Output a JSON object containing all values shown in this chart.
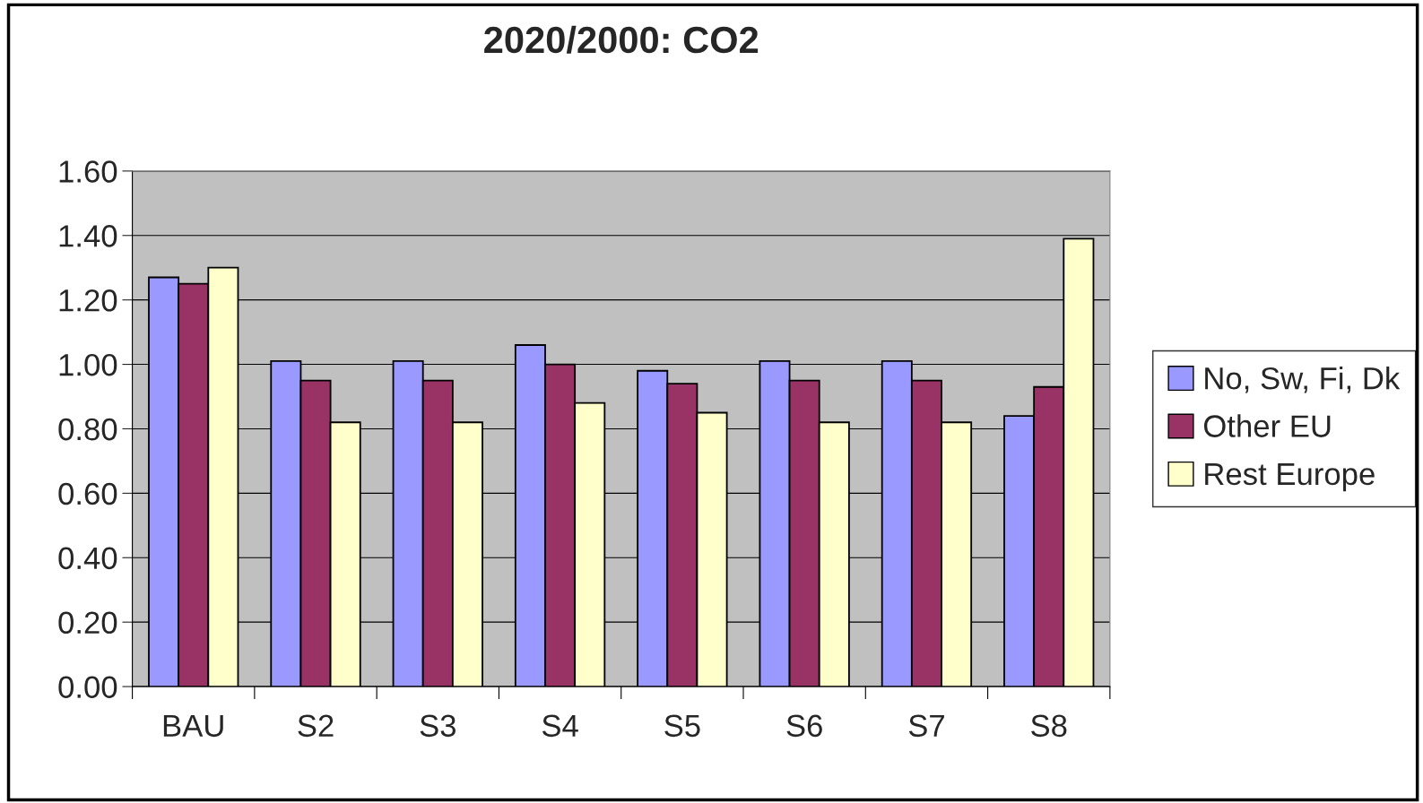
{
  "chart_data": {
    "type": "bar",
    "title": "2020/2000: CO2",
    "categories": [
      "BAU",
      "S2",
      "S3",
      "S4",
      "S5",
      "S6",
      "S7",
      "S8"
    ],
    "series": [
      {
        "name": "No, Sw, Fi, Dk",
        "color": "#9999ff",
        "values": [
          1.27,
          1.01,
          1.01,
          1.06,
          0.98,
          1.01,
          1.01,
          0.84
        ]
      },
      {
        "name": "Other EU",
        "color": "#993366",
        "values": [
          1.25,
          0.95,
          0.95,
          1.0,
          0.94,
          0.95,
          0.95,
          0.93
        ]
      },
      {
        "name": "Rest Europe",
        "color": "#ffffcc",
        "values": [
          1.3,
          0.82,
          0.82,
          0.88,
          0.85,
          0.82,
          0.82,
          1.39
        ]
      }
    ],
    "ylim": [
      0,
      1.6
    ],
    "yticks": [
      {
        "value": 0,
        "label": "0.00"
      },
      {
        "value": 0.2,
        "label": "0.20"
      },
      {
        "value": 0.4,
        "label": "0.40"
      },
      {
        "value": 0.6,
        "label": "0.60"
      },
      {
        "value": 0.8,
        "label": "0.80"
      },
      {
        "value": 1.0,
        "label": "1.00"
      },
      {
        "value": 1.2,
        "label": "1.20"
      },
      {
        "value": 1.4,
        "label": "1.40"
      },
      {
        "value": 1.6,
        "label": "1.60"
      }
    ],
    "grid": "y",
    "legend": "right"
  }
}
